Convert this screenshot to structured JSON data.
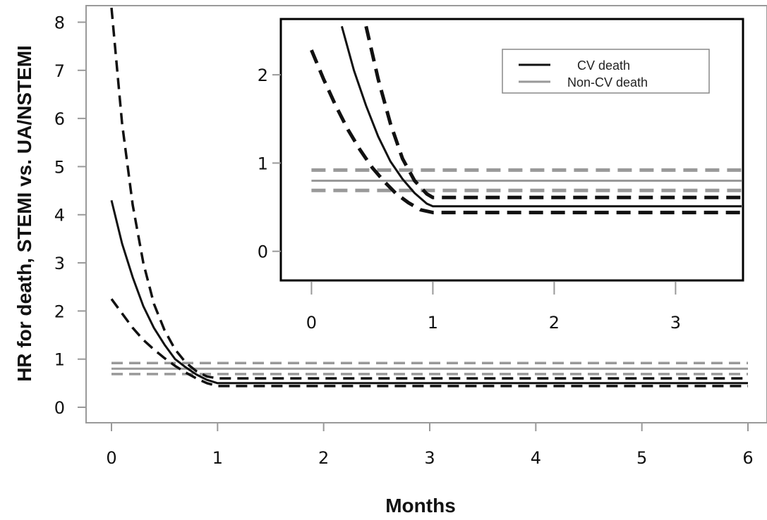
{
  "chart_data": [
    {
      "type": "line",
      "title": "",
      "xlabel": "Months",
      "ylabel": "HR for death, STEMI vs. UA/NSTEMI",
      "xlim": [
        0,
        6
      ],
      "ylim": [
        0,
        8.3
      ],
      "xticks": [
        "0",
        "1",
        "2",
        "3",
        "4",
        "5",
        "6"
      ],
      "yticks": [
        "0",
        "1",
        "2",
        "3",
        "4",
        "5",
        "6",
        "7",
        "8"
      ],
      "grid": false,
      "series": [
        {
          "key": "cv",
          "role": "estimate",
          "color": "#111111",
          "style": "solid",
          "x": [
            0,
            0.1,
            0.2,
            0.3,
            0.4,
            0.5,
            0.6,
            0.7,
            0.8,
            0.9,
            1.0,
            6.0
          ],
          "y": [
            4.3,
            3.4,
            2.7,
            2.1,
            1.65,
            1.3,
            1.0,
            0.83,
            0.68,
            0.57,
            0.5,
            0.5
          ]
        },
        {
          "key": "cv",
          "role": "upper",
          "color": "#111111",
          "style": "dashed",
          "x": [
            0,
            0.1,
            0.2,
            0.3,
            0.4,
            0.5,
            0.6,
            0.7,
            0.8,
            0.9,
            1.0,
            6.0
          ],
          "y": [
            8.3,
            5.9,
            4.2,
            3.0,
            2.15,
            1.6,
            1.2,
            0.93,
            0.75,
            0.64,
            0.6,
            0.6
          ]
        },
        {
          "key": "cv",
          "role": "lower",
          "color": "#111111",
          "style": "dashed",
          "x": [
            0,
            0.1,
            0.2,
            0.3,
            0.4,
            0.5,
            0.6,
            0.7,
            0.8,
            0.9,
            1.0,
            6.0
          ],
          "y": [
            2.25,
            1.95,
            1.65,
            1.4,
            1.2,
            1.02,
            0.86,
            0.72,
            0.6,
            0.5,
            0.44,
            0.44
          ]
        },
        {
          "key": "noncv",
          "role": "estimate",
          "color": "#999999",
          "style": "solid",
          "x": [
            0,
            6
          ],
          "y": [
            0.8,
            0.8
          ]
        },
        {
          "key": "noncv",
          "role": "upper",
          "color": "#999999",
          "style": "dashed",
          "x": [
            0,
            6
          ],
          "y": [
            0.92,
            0.92
          ]
        },
        {
          "key": "noncv",
          "role": "lower",
          "color": "#999999",
          "style": "dashed",
          "x": [
            0,
            6
          ],
          "y": [
            0.69,
            0.69
          ]
        }
      ]
    },
    {
      "type": "line",
      "title": "",
      "xlabel": "",
      "ylabel": "",
      "xlim": [
        -0.02,
        3.55
      ],
      "ylim": [
        -0.33,
        2.6
      ],
      "xticks": [
        "0",
        "1",
        "2",
        "3"
      ],
      "yticks": [
        "0",
        "1",
        "2"
      ],
      "grid": false,
      "legend_position": "top-right",
      "legend": [
        {
          "label": "CV death",
          "color": "#111111"
        },
        {
          "label": "Non-CV death",
          "color": "#999999"
        }
      ],
      "series": [
        {
          "key": "cv",
          "role": "estimate",
          "color": "#111111",
          "style": "solid",
          "x": [
            0.25,
            0.35,
            0.45,
            0.55,
            0.65,
            0.75,
            0.85,
            0.95,
            1.0,
            3.55
          ],
          "y": [
            2.55,
            2.05,
            1.65,
            1.3,
            1.02,
            0.82,
            0.66,
            0.54,
            0.51,
            0.51
          ]
        },
        {
          "key": "cv",
          "role": "upper",
          "color": "#111111",
          "style": "dashed",
          "x": [
            0.45,
            0.55,
            0.65,
            0.75,
            0.85,
            0.95,
            1.0,
            3.55
          ],
          "y": [
            2.55,
            1.95,
            1.45,
            1.05,
            0.8,
            0.65,
            0.61,
            0.61
          ]
        },
        {
          "key": "cv",
          "role": "lower",
          "color": "#111111",
          "style": "dashed",
          "x": [
            0,
            0.1,
            0.2,
            0.3,
            0.4,
            0.5,
            0.6,
            0.7,
            0.8,
            0.9,
            1.0,
            3.55
          ],
          "y": [
            2.28,
            1.95,
            1.65,
            1.38,
            1.15,
            0.95,
            0.79,
            0.65,
            0.55,
            0.47,
            0.44,
            0.44
          ]
        },
        {
          "key": "noncv",
          "role": "estimate",
          "color": "#999999",
          "style": "solid",
          "x": [
            0,
            3.55
          ],
          "y": [
            0.8,
            0.8
          ]
        },
        {
          "key": "noncv",
          "role": "upper",
          "color": "#999999",
          "style": "dashed",
          "x": [
            0,
            3.55
          ],
          "y": [
            0.92,
            0.92
          ]
        },
        {
          "key": "noncv",
          "role": "lower",
          "color": "#999999",
          "style": "dashed",
          "x": [
            0,
            3.55
          ],
          "y": [
            0.69,
            0.69
          ]
        }
      ]
    }
  ]
}
